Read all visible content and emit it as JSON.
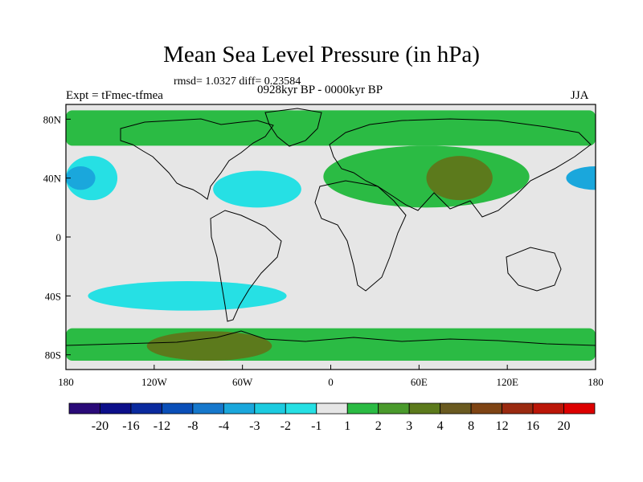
{
  "chart_data": {
    "type": "heatmap",
    "title": "Mean Sea Level Pressure (in hPa)",
    "stats_text": "rmsd= 1.0327 diff= 0.23584",
    "experiment_text": "Expt = tFmec-tfmea",
    "period_text": "0928kyr BP - 0000kyr BP",
    "season": "JJA",
    "x_ticks": [
      "180",
      "120W",
      "60W",
      "0",
      "60E",
      "120E",
      "180"
    ],
    "y_ticks": [
      "80N",
      "40N",
      "0",
      "40S",
      "80S"
    ],
    "xlim": [
      -180,
      180
    ],
    "ylim": [
      -90,
      90
    ],
    "colorbar": {
      "labels": [
        "-20",
        "-16",
        "-12",
        "-8",
        "-4",
        "-3",
        "-2",
        "-1",
        "1",
        "2",
        "3",
        "4",
        "8",
        "12",
        "16",
        "20"
      ],
      "colors": [
        "#2a0a78",
        "#0c0f8a",
        "#0a2a9e",
        "#0a4fb8",
        "#1678cc",
        "#1aa7dc",
        "#1ccbe0",
        "#26e0e4",
        "#e6e6e6",
        "#2bbb44",
        "#4a9a2c",
        "#5c7a1c",
        "#6a5a20",
        "#7e4414",
        "#9a2a10",
        "#bb1608",
        "#dd0000"
      ]
    },
    "regions": [
      {
        "level": "1 to 2",
        "description": "Arctic band 62N-84N most longitudes",
        "lon": [
          -180,
          180
        ],
        "lat": [
          62,
          86
        ]
      },
      {
        "level": "1 to 2",
        "description": "Eurasia and North Africa",
        "lon": [
          -5,
          135
        ],
        "lat": [
          20,
          62
        ]
      },
      {
        "level": "1 to 2",
        "description": "Southern Ocean band",
        "lon": [
          -180,
          180
        ],
        "lat": [
          -84,
          -62
        ]
      },
      {
        "level": "2 to 3",
        "description": "Central Asia / Tibet",
        "lon": [
          65,
          110
        ],
        "lat": [
          25,
          55
        ]
      },
      {
        "level": "2 to 3",
        "description": "Antarctic coast Pacific sector",
        "lon": [
          -125,
          -40
        ],
        "lat": [
          -84,
          -64
        ]
      },
      {
        "level": "-2 to -1",
        "description": "North Pacific east",
        "lon": [
          -180,
          -145
        ],
        "lat": [
          25,
          55
        ]
      },
      {
        "level": "-2 to -1",
        "description": "North Atlantic band",
        "lon": [
          -80,
          -20
        ],
        "lat": [
          20,
          45
        ]
      },
      {
        "level": "-2 to -1",
        "description": "South Pacific band",
        "lon": [
          -165,
          -30
        ],
        "lat": [
          -50,
          -30
        ]
      },
      {
        "level": "-3 to -2",
        "description": "North Pacific core",
        "lon": [
          -180,
          -160
        ],
        "lat": [
          32,
          48
        ]
      }
    ]
  }
}
